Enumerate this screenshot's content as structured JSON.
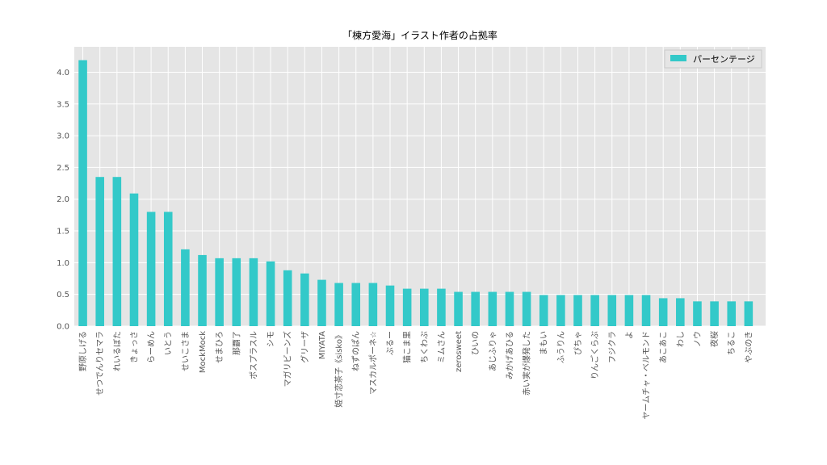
{
  "chart_data": {
    "type": "bar",
    "title": "「棟方愛海」イラスト作者の占拠率",
    "xlabel": "",
    "ylabel": "",
    "ylim": [
      0,
      4.4
    ],
    "yticks": [
      "0.0",
      "0.5",
      "1.0",
      "1.5",
      "2.0",
      "2.5",
      "3.0",
      "3.5",
      "4.0"
    ],
    "ytick_values": [
      0,
      0.5,
      1.0,
      1.5,
      2.0,
      2.5,
      3.0,
      3.5,
      4.0
    ],
    "grid": true,
    "legend_position": "top-right",
    "categories": [
      "野原しげる",
      "せつでんりセマラ",
      "れいるぼた",
      "きょっさ",
      "らーめん",
      "いとう",
      "せいこさま",
      "MockMock",
      "せまひろ",
      "那覇了",
      "ポスプラスル",
      "シモ",
      "マガリビーンズ",
      "グリーザ",
      "MIYATA",
      "姫寸恋茶子《sisko》",
      "ねずのぱん",
      "マスカルポーネ☆",
      "ぶるー",
      "猫こま里",
      "ちくわぶ",
      "ミムさん",
      "zerosweet",
      "ひいの",
      "あじふりゃ",
      "みかげあひる",
      "赤い実が爆発した",
      "まもい",
      "ふうりん",
      "ぴちゃ",
      "りんごくらぶ",
      "フジクラ",
      "よ",
      "ヤームチャ・ベルモンド",
      "あこあこ",
      "わし",
      "ノウ",
      "夜桜",
      "ちるこ",
      "やぶのき"
    ],
    "series": [
      {
        "name": "パーセンテージ",
        "color": "#33c9c9",
        "values": [
          4.19,
          2.35,
          2.35,
          2.09,
          1.8,
          1.8,
          1.21,
          1.12,
          1.07,
          1.07,
          1.07,
          1.02,
          0.88,
          0.83,
          0.73,
          0.68,
          0.68,
          0.68,
          0.64,
          0.59,
          0.59,
          0.59,
          0.54,
          0.54,
          0.54,
          0.54,
          0.54,
          0.49,
          0.49,
          0.49,
          0.49,
          0.49,
          0.49,
          0.49,
          0.44,
          0.44,
          0.39,
          0.39,
          0.39,
          0.39
        ]
      }
    ]
  }
}
